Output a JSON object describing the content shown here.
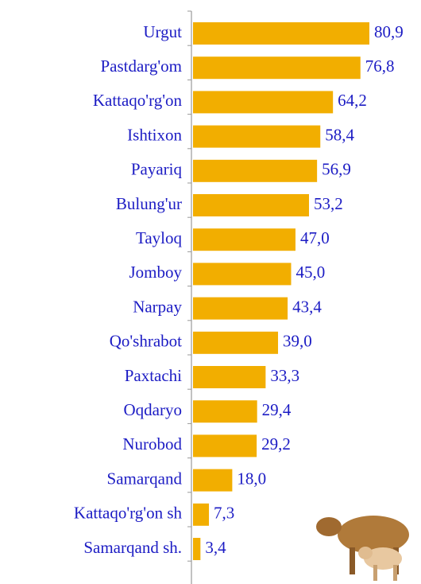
{
  "chart_data": {
    "type": "bar",
    "orientation": "horizontal",
    "categories": [
      "Urgut",
      "Pastdarg'om",
      "Kattaqo'rg'on",
      "Ishtixon",
      "Payariq",
      "Bulung'ur",
      "Tayloq",
      "Jomboy",
      "Narpay",
      "Qo'shrabot",
      "Paxtachi",
      "Oqdaryo",
      "Nurobod",
      "Samarqand",
      "Kattaqo'rg'on sh",
      "Samarqand sh."
    ],
    "values": [
      80.9,
      76.8,
      64.2,
      58.4,
      56.9,
      53.2,
      47.0,
      45.0,
      43.4,
      39.0,
      33.3,
      29.4,
      29.2,
      18.0,
      7.3,
      3.4
    ],
    "value_labels": [
      "80,9",
      "76,8",
      "64,2",
      "58,4",
      "56,9",
      "53,2",
      "47,0",
      "45,0",
      "43,4",
      "39,0",
      "33,3",
      "29,4",
      "29,2",
      "18,0",
      "7,3",
      "3,4"
    ],
    "color": "#f2ae00",
    "label_color": "#1c1cc4"
  }
}
